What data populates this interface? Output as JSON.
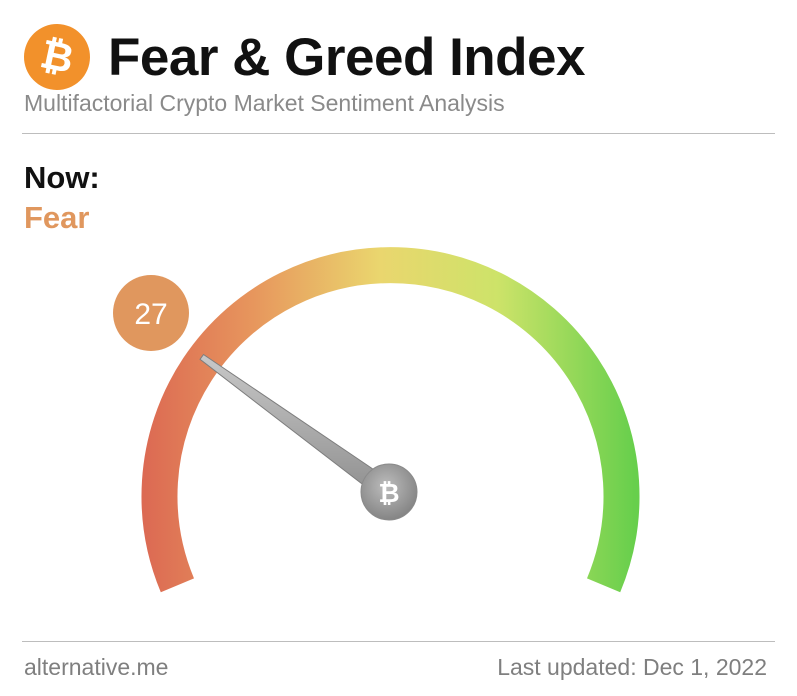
{
  "header": {
    "logo_icon": "bitcoin-icon",
    "logo_symbol": "₿",
    "logo_color": "#f2912b",
    "title": "Fear & Greed Index",
    "subtitle": "Multifactorial Crypto Market Sentiment Analysis"
  },
  "now": {
    "label": "Now:",
    "classification": "Fear",
    "classification_color": "#e0975e"
  },
  "gauge": {
    "value": 27,
    "value_text": "27",
    "min": 0,
    "max": 100,
    "badge_color": "#e0975e",
    "center_icon": "bitcoin-icon",
    "center_symbol": "₿",
    "gradient_colors": [
      "#dc6a53",
      "#e7965d",
      "#ead66e",
      "#cde369",
      "#67cf4c"
    ]
  },
  "footer": {
    "source": "alternative.me",
    "last_updated": "Last updated: Dec 1, 2022"
  }
}
